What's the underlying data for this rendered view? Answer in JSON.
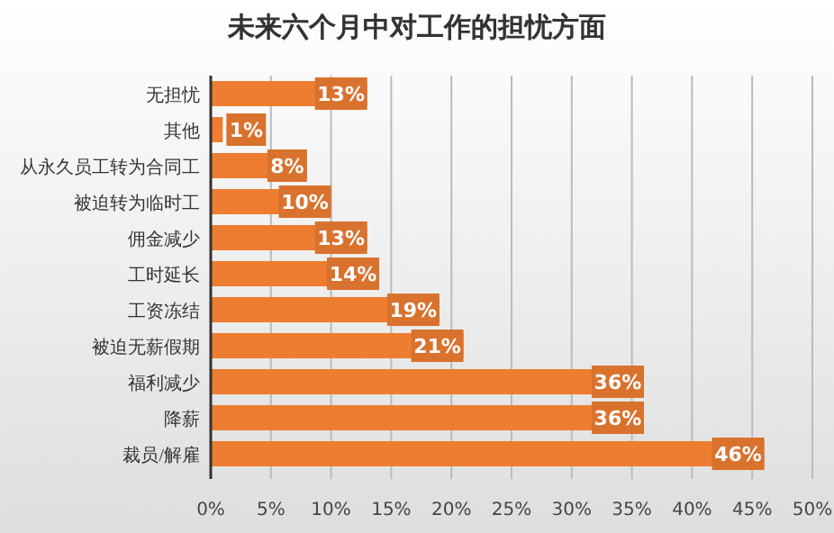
{
  "chart_data": {
    "type": "bar",
    "orientation": "horizontal",
    "title": "未来六个月中对工作的担忧方面",
    "categories": [
      "无担忧",
      "其他",
      "从永久员工转为合同工",
      "被迫转为临时工",
      "佣金减少",
      "工时延长",
      "工资冻结",
      "被迫无薪假期",
      "福利减少",
      "降薪",
      "裁员/解雇"
    ],
    "values": [
      13,
      1,
      8,
      10,
      13,
      14,
      19,
      21,
      36,
      36,
      46
    ],
    "value_labels": [
      "13%",
      "1%",
      "8%",
      "10%",
      "13%",
      "14%",
      "19%",
      "21%",
      "36%",
      "36%",
      "46%"
    ],
    "color": "#ed7d31",
    "xlim": [
      0,
      50
    ],
    "xticks": [
      {
        "value": 0,
        "label": "0%"
      },
      {
        "value": 5,
        "label": "5%"
      },
      {
        "value": 10,
        "label": "10%"
      },
      {
        "value": 15,
        "label": "15%"
      },
      {
        "value": 20,
        "label": "20%"
      },
      {
        "value": 25,
        "label": "25%"
      },
      {
        "value": 30,
        "label": "30%"
      },
      {
        "value": 35,
        "label": "35%"
      },
      {
        "value": 40,
        "label": "40%"
      },
      {
        "value": 45,
        "label": "45%"
      },
      {
        "value": 50,
        "label": "50%"
      }
    ],
    "grid": "x"
  }
}
